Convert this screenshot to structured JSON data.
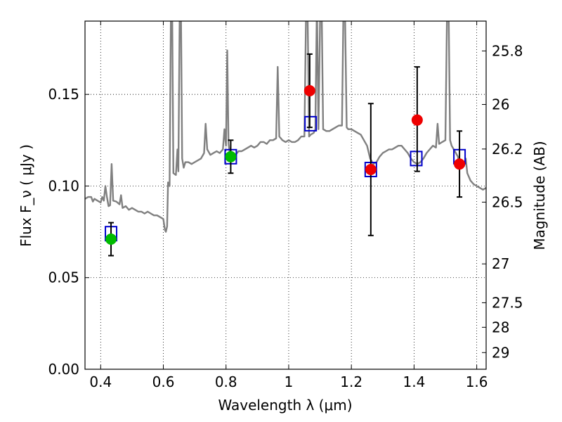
{
  "chart_data": {
    "type": "scatter",
    "title": "",
    "xlabel": "Wavelength λ (μm)",
    "ylabel": "Flux F_ν ( μJy )",
    "ylabel_right": "Magnitude (AB)",
    "xlim": [
      0.35,
      1.63
    ],
    "ylim": [
      0.0,
      0.19
    ],
    "grid": true,
    "x_ticks": [
      0.4,
      0.6,
      0.8,
      1.0,
      1.2,
      1.4,
      1.6
    ],
    "x_tick_labels": [
      "0.4",
      "0.6",
      "0.8",
      "1",
      "1.2",
      "1.4",
      "1.6"
    ],
    "y_ticks": [
      0.0,
      0.05,
      0.1,
      0.15
    ],
    "y_tick_labels": [
      "0.00",
      "0.05",
      "0.10",
      "0.15"
    ],
    "right_ticks": [
      {
        "label": "25.8",
        "flux": 0.1737
      },
      {
        "label": "26",
        "flux": 0.1445
      },
      {
        "label": "26.2",
        "flux": 0.1202
      },
      {
        "label": "26.5",
        "flux": 0.0912
      },
      {
        "label": "27",
        "flux": 0.0575
      },
      {
        "label": "27.5",
        "flux": 0.0363
      },
      {
        "label": "28",
        "flux": 0.0229
      },
      {
        "label": "29",
        "flux": 0.0091
      }
    ],
    "colors": {
      "spectrum": "#808080",
      "model_box": "#0000cc",
      "green_point": "#00bb00",
      "red_point": "#ee0000",
      "error_bar": "#000000"
    },
    "series": [
      {
        "kind": "spectrum",
        "points": [
          [
            0.35,
            0.093
          ],
          [
            0.36,
            0.094
          ],
          [
            0.37,
            0.094
          ],
          [
            0.375,
            0.0915
          ],
          [
            0.38,
            0.093
          ],
          [
            0.39,
            0.092
          ],
          [
            0.4,
            0.091
          ],
          [
            0.405,
            0.094
          ],
          [
            0.41,
            0.092
          ],
          [
            0.415,
            0.1
          ],
          [
            0.42,
            0.094
          ],
          [
            0.425,
            0.089
          ],
          [
            0.43,
            0.0895
          ],
          [
            0.435,
            0.112
          ],
          [
            0.44,
            0.092
          ],
          [
            0.45,
            0.0915
          ],
          [
            0.46,
            0.09
          ],
          [
            0.465,
            0.095
          ],
          [
            0.47,
            0.088
          ],
          [
            0.48,
            0.089
          ],
          [
            0.49,
            0.087
          ],
          [
            0.5,
            0.088
          ],
          [
            0.51,
            0.087
          ],
          [
            0.52,
            0.086
          ],
          [
            0.53,
            0.086
          ],
          [
            0.54,
            0.085
          ],
          [
            0.55,
            0.086
          ],
          [
            0.56,
            0.085
          ],
          [
            0.57,
            0.084
          ],
          [
            0.58,
            0.084
          ],
          [
            0.59,
            0.083
          ],
          [
            0.6,
            0.082
          ],
          [
            0.605,
            0.076
          ],
          [
            0.608,
            0.075
          ],
          [
            0.612,
            0.078
          ],
          [
            0.615,
            0.102
          ],
          [
            0.62,
            0.1
          ],
          [
            0.624,
            0.19
          ],
          [
            0.628,
            0.2
          ],
          [
            0.632,
            0.107
          ],
          [
            0.64,
            0.106
          ],
          [
            0.645,
            0.12
          ],
          [
            0.648,
            0.108
          ],
          [
            0.652,
            0.19
          ],
          [
            0.656,
            0.2
          ],
          [
            0.66,
            0.115
          ],
          [
            0.665,
            0.11
          ],
          [
            0.67,
            0.113
          ],
          [
            0.68,
            0.113
          ],
          [
            0.69,
            0.112
          ],
          [
            0.7,
            0.113
          ],
          [
            0.71,
            0.114
          ],
          [
            0.72,
            0.115
          ],
          [
            0.73,
            0.118
          ],
          [
            0.735,
            0.134
          ],
          [
            0.74,
            0.12
          ],
          [
            0.75,
            0.117
          ],
          [
            0.76,
            0.118
          ],
          [
            0.77,
            0.119
          ],
          [
            0.78,
            0.118
          ],
          [
            0.79,
            0.12
          ],
          [
            0.795,
            0.131
          ],
          [
            0.8,
            0.122
          ],
          [
            0.804,
            0.174
          ],
          [
            0.808,
            0.123
          ],
          [
            0.812,
            0.118
          ],
          [
            0.82,
            0.118
          ],
          [
            0.83,
            0.117
          ],
          [
            0.84,
            0.119
          ],
          [
            0.85,
            0.119
          ],
          [
            0.86,
            0.12
          ],
          [
            0.87,
            0.121
          ],
          [
            0.88,
            0.122
          ],
          [
            0.89,
            0.121
          ],
          [
            0.9,
            0.122
          ],
          [
            0.91,
            0.124
          ],
          [
            0.92,
            0.124
          ],
          [
            0.93,
            0.123
          ],
          [
            0.94,
            0.125
          ],
          [
            0.95,
            0.125
          ],
          [
            0.96,
            0.126
          ],
          [
            0.965,
            0.165
          ],
          [
            0.97,
            0.127
          ],
          [
            0.98,
            0.125
          ],
          [
            0.99,
            0.124
          ],
          [
            1.0,
            0.125
          ],
          [
            1.01,
            0.124
          ],
          [
            1.02,
            0.124
          ],
          [
            1.03,
            0.125
          ],
          [
            1.04,
            0.127
          ],
          [
            1.05,
            0.127
          ],
          [
            1.055,
            0.19
          ],
          [
            1.06,
            0.2
          ],
          [
            1.065,
            0.127
          ],
          [
            1.07,
            0.128
          ],
          [
            1.08,
            0.129
          ],
          [
            1.085,
            0.131
          ],
          [
            1.09,
            0.2
          ],
          [
            1.095,
            0.131
          ],
          [
            1.1,
            0.19
          ],
          [
            1.105,
            0.2
          ],
          [
            1.11,
            0.131
          ],
          [
            1.12,
            0.13
          ],
          [
            1.13,
            0.13
          ],
          [
            1.14,
            0.131
          ],
          [
            1.15,
            0.132
          ],
          [
            1.16,
            0.133
          ],
          [
            1.17,
            0.133
          ],
          [
            1.175,
            0.2
          ],
          [
            1.18,
            0.19
          ],
          [
            1.185,
            0.132
          ],
          [
            1.19,
            0.131
          ],
          [
            1.2,
            0.131
          ],
          [
            1.21,
            0.13
          ],
          [
            1.22,
            0.129
          ],
          [
            1.23,
            0.128
          ],
          [
            1.24,
            0.125
          ],
          [
            1.25,
            0.122
          ],
          [
            1.26,
            0.115
          ],
          [
            1.27,
            0.112
          ],
          [
            1.28,
            0.113
          ],
          [
            1.29,
            0.116
          ],
          [
            1.3,
            0.118
          ],
          [
            1.31,
            0.119
          ],
          [
            1.32,
            0.12
          ],
          [
            1.33,
            0.12
          ],
          [
            1.34,
            0.121
          ],
          [
            1.35,
            0.122
          ],
          [
            1.36,
            0.122
          ],
          [
            1.37,
            0.12
          ],
          [
            1.38,
            0.118
          ],
          [
            1.39,
            0.115
          ],
          [
            1.4,
            0.113
          ],
          [
            1.41,
            0.112
          ],
          [
            1.42,
            0.113
          ],
          [
            1.43,
            0.115
          ],
          [
            1.44,
            0.118
          ],
          [
            1.45,
            0.12
          ],
          [
            1.46,
            0.122
          ],
          [
            1.47,
            0.121
          ],
          [
            1.475,
            0.134
          ],
          [
            1.48,
            0.123
          ],
          [
            1.49,
            0.124
          ],
          [
            1.5,
            0.125
          ],
          [
            1.505,
            0.19
          ],
          [
            1.51,
            0.2
          ],
          [
            1.515,
            0.125
          ],
          [
            1.52,
            0.122
          ],
          [
            1.53,
            0.119
          ],
          [
            1.54,
            0.116
          ],
          [
            1.545,
            0.11
          ],
          [
            1.55,
            0.112
          ],
          [
            1.56,
            0.111
          ],
          [
            1.565,
            0.115
          ],
          [
            1.57,
            0.107
          ],
          [
            1.58,
            0.103
          ],
          [
            1.59,
            0.101
          ],
          [
            1.6,
            0.1
          ],
          [
            1.61,
            0.099
          ],
          [
            1.62,
            0.098
          ],
          [
            1.63,
            0.099
          ]
        ]
      },
      {
        "kind": "model_boxes",
        "points": [
          [
            0.433,
            0.074
          ],
          [
            0.815,
            0.116
          ],
          [
            1.07,
            0.134
          ],
          [
            1.262,
            0.109
          ],
          [
            1.407,
            0.115
          ],
          [
            1.545,
            0.116
          ]
        ]
      },
      {
        "kind": "observed",
        "points": [
          {
            "x": 0.433,
            "y": 0.071,
            "yerr_low": 0.062,
            "yerr_high": 0.08,
            "color": "green"
          },
          {
            "x": 0.815,
            "y": 0.116,
            "yerr_low": 0.107,
            "yerr_high": 0.125,
            "color": "green"
          },
          {
            "x": 1.067,
            "y": 0.152,
            "yerr_low": 0.132,
            "yerr_high": 0.172,
            "color": "red"
          },
          {
            "x": 1.262,
            "y": 0.109,
            "yerr_low": 0.073,
            "yerr_high": 0.145,
            "color": "red"
          },
          {
            "x": 1.41,
            "y": 0.136,
            "yerr_low": 0.108,
            "yerr_high": 0.165,
            "color": "red"
          },
          {
            "x": 1.545,
            "y": 0.112,
            "yerr_low": 0.094,
            "yerr_high": 0.13,
            "color": "red"
          }
        ]
      }
    ]
  }
}
